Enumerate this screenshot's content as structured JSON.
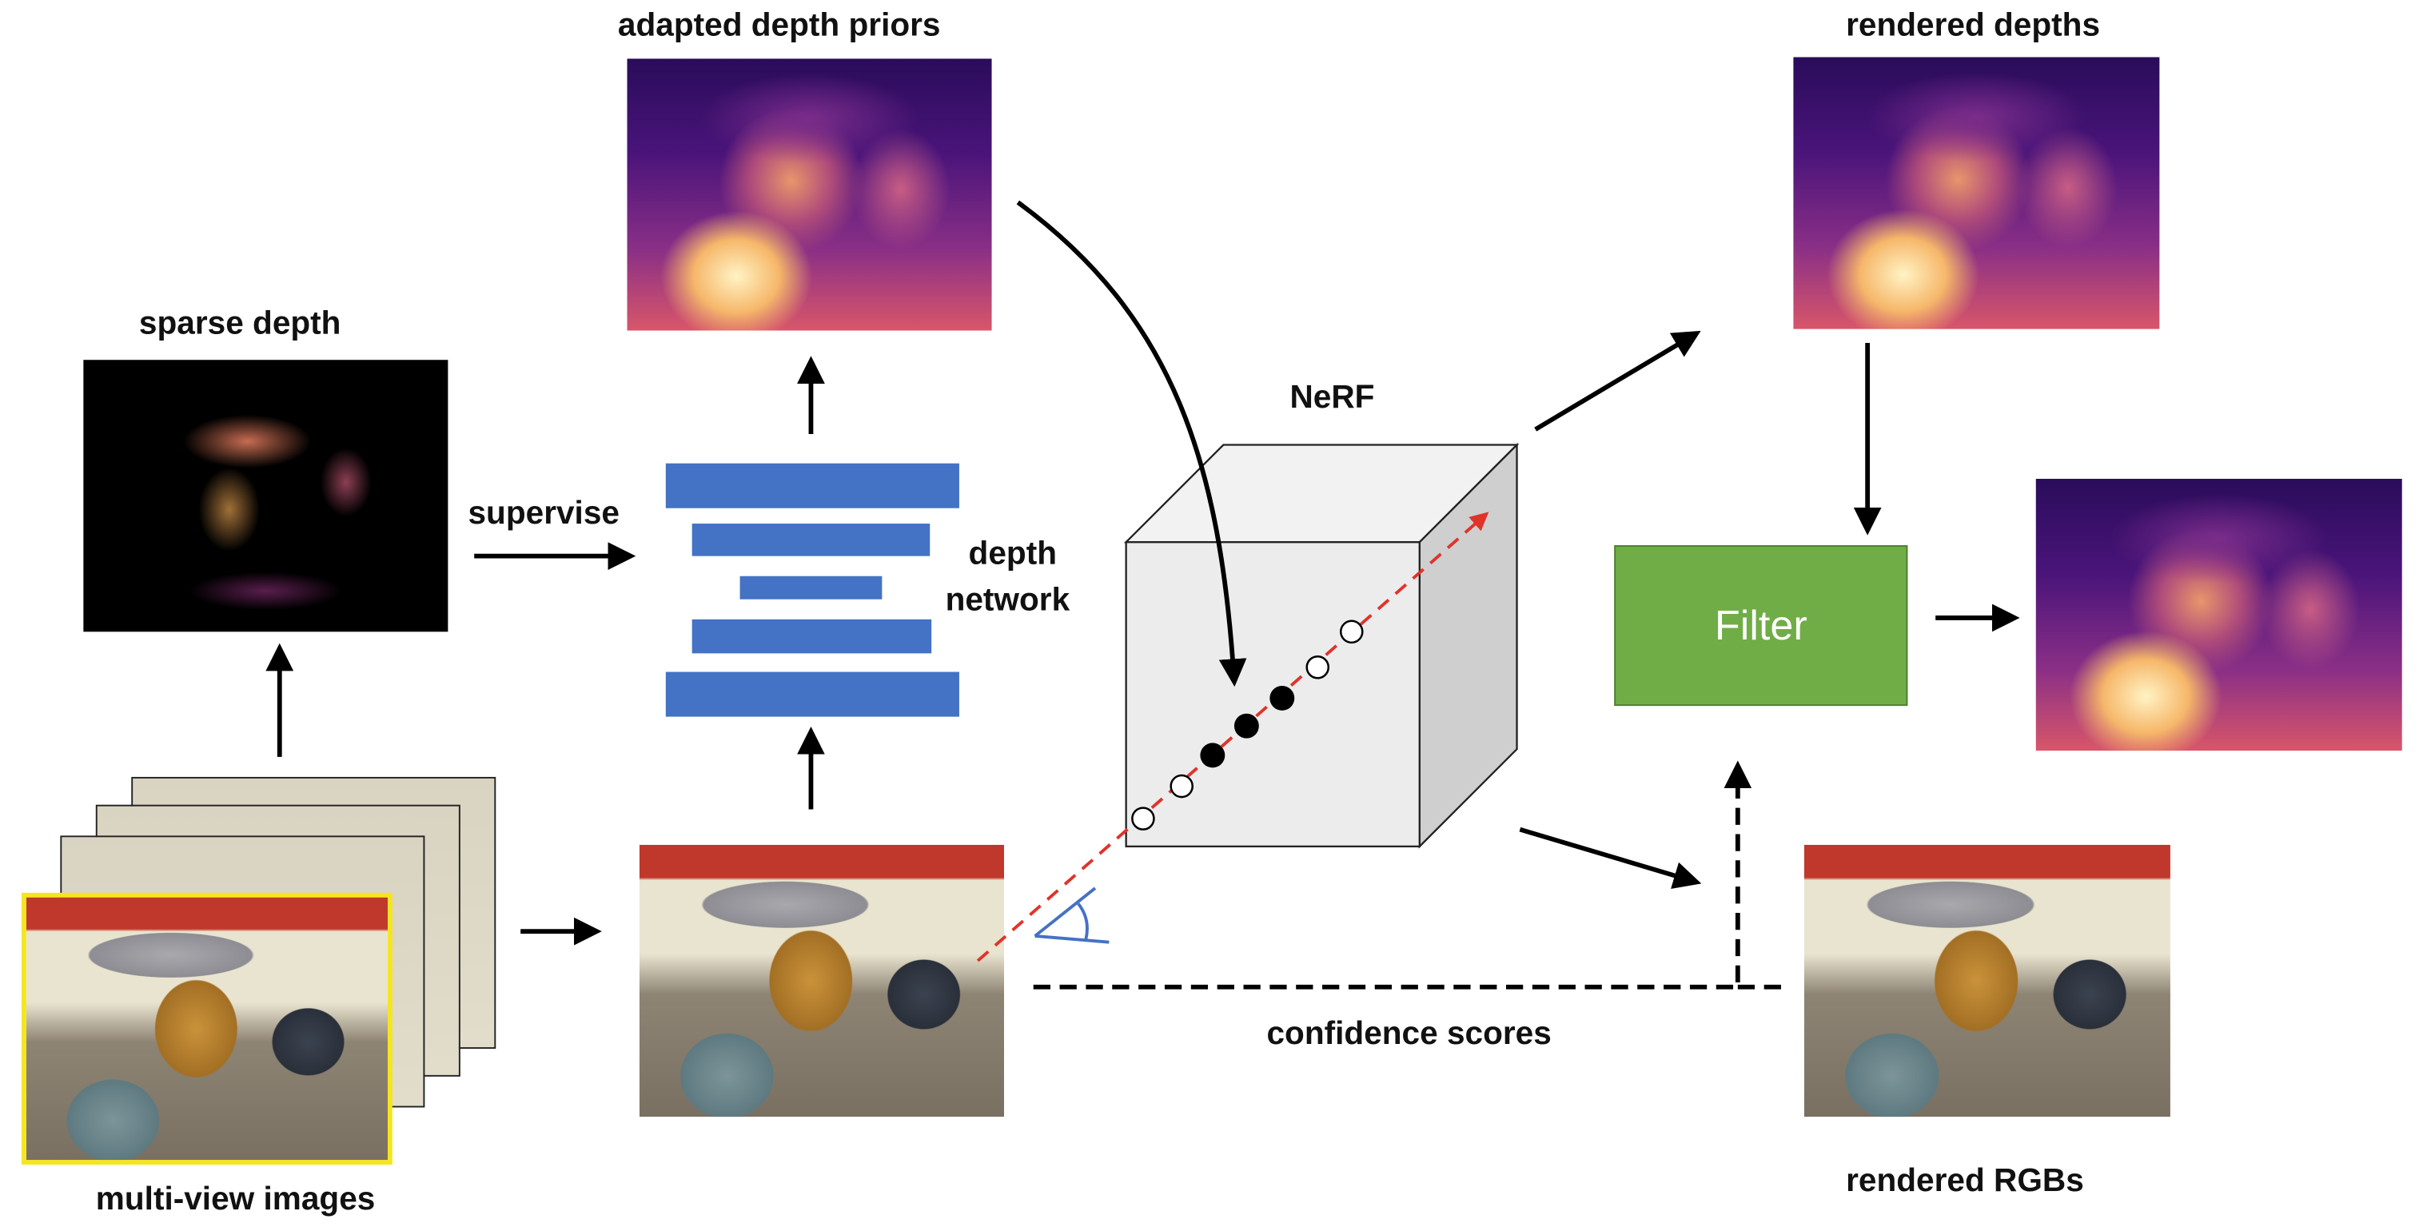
{
  "labels": {
    "adapted_depth_priors": "adapted depth priors",
    "rendered_depths": "rendered depths",
    "sparse_depth": "sparse depth",
    "nerf": "NeRF",
    "supervise": "supervise",
    "depth_network_line1": "depth",
    "depth_network_line2": "network",
    "filter": "Filter",
    "confidence_scores": "confidence scores",
    "rendered_rgbs": "rendered RGBs",
    "multi_view_images": "multi-view images"
  },
  "colors": {
    "network_bar": "#4472c4",
    "filter_box": "#70ad47",
    "ray": "#e0332a",
    "highlight_frame": "#f5e51f",
    "camera_icon": "#4472c4"
  }
}
